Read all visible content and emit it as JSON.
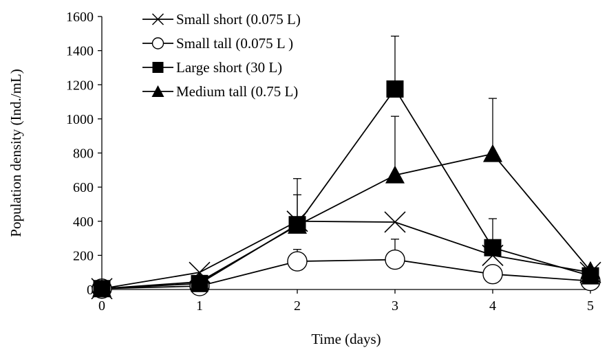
{
  "chart_data": {
    "type": "line",
    "xlabel": "Time (days)",
    "ylabel": "Population density (Ind./mL)",
    "xlim": [
      0,
      5
    ],
    "ylim": [
      0,
      1600
    ],
    "x_ticks": [
      0,
      1,
      2,
      3,
      4,
      5
    ],
    "y_ticks": [
      0,
      200,
      400,
      600,
      800,
      1000,
      1200,
      1400,
      1600
    ],
    "grid": false,
    "legend_position": "top-left",
    "x": [
      0,
      1,
      2,
      3,
      4,
      5
    ],
    "series": [
      {
        "name": "Small short (0.075 L)",
        "marker": "cross",
        "values": [
          5,
          100,
          400,
          395,
          200,
          100
        ],
        "error_upper": [
          0,
          0,
          0,
          0,
          0,
          0
        ]
      },
      {
        "name": "Small tall (0.075 L )",
        "marker": "open-circle",
        "values": [
          5,
          20,
          165,
          175,
          90,
          50
        ],
        "error_upper": [
          0,
          0,
          70,
          120,
          0,
          0
        ]
      },
      {
        "name": "Large short (30 L)",
        "marker": "filled-square",
        "values": [
          5,
          35,
          380,
          1175,
          245,
          80
        ],
        "error_upper": [
          0,
          0,
          270,
          310,
          170,
          0
        ]
      },
      {
        "name": "Medium tall (0.75 L)",
        "marker": "filled-triangle",
        "values": [
          5,
          45,
          375,
          670,
          795,
          110
        ],
        "error_upper": [
          0,
          0,
          180,
          345,
          325,
          0
        ]
      }
    ]
  }
}
